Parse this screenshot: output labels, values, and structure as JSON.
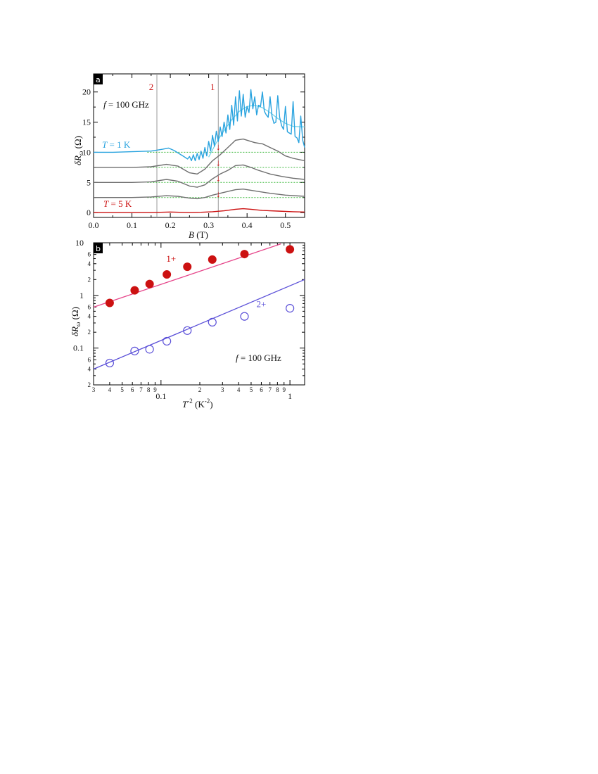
{
  "colors": {
    "cyan": "#29a3df",
    "cyan_light": "#6fd3e8",
    "gray": "#6e6e6e",
    "red": "#cc1111",
    "red_fit": "#e6458a",
    "blue": "#5a4fd8",
    "green": "#3cb83c",
    "marker_line": "#999999"
  },
  "chart_data": [
    {
      "panel": "a",
      "type": "line",
      "xlabel_italic": "B",
      "xlabel_rest": " (T)",
      "ylabel_prefix": "δ",
      "ylabel_main": "R",
      "ylabel_sub": "ω",
      "ylabel_unit": "  (Ω)",
      "xlim": [
        0,
        0.55
      ],
      "ylim": [
        -0.8,
        23
      ],
      "x_ticks": [
        0.0,
        0.1,
        0.2,
        0.3,
        0.4,
        0.5
      ],
      "x_tick_labels": [
        "0.0",
        "0.1",
        "0.2",
        "0.3",
        "0.4",
        "0.5"
      ],
      "y_ticks": [
        0,
        5,
        10,
        15,
        20
      ],
      "y_tick_labels": [
        "0",
        "5",
        "10",
        "15",
        "20"
      ],
      "vertical_lines": [
        {
          "x": 0.165,
          "label": "2"
        },
        {
          "x": 0.325,
          "label": "1"
        }
      ],
      "frequency_prefix": "f",
      "frequency_text": " = 100 GHz",
      "temp_high_prefix": "T",
      "temp_high_text": " = 1 K",
      "temp_low_prefix": "T",
      "temp_low_text": " = 5 K",
      "arrow_glyph": "↓",
      "arrows": [
        {
          "x": 0.325,
          "y": 10.4
        },
        {
          "x": 0.325,
          "y": 7.8
        },
        {
          "x": 0.325,
          "y": 5.2
        },
        {
          "x": 0.325,
          "y": 2.6
        }
      ],
      "baselines": [
        10,
        7.5,
        5,
        2.5
      ],
      "series": [
        {
          "color_key": "cyan_light",
          "width": 1.2,
          "x": [
            0.3,
            0.32,
            0.34,
            0.36,
            0.38,
            0.4,
            0.42,
            0.44,
            0.46,
            0.48,
            0.5,
            0.52,
            0.55
          ],
          "y": [
            9.2,
            11.6,
            13.6,
            15.4,
            16.8,
            17.6,
            17.8,
            17.4,
            16.6,
            15.6,
            14.8,
            14.3,
            14.2
          ]
        },
        {
          "color_key": "cyan",
          "width": 1.4,
          "x": [
            0.0,
            0.05,
            0.1,
            0.15,
            0.18,
            0.195,
            0.21,
            0.225,
            0.235,
            0.245,
            0.25,
            0.255,
            0.26,
            0.265,
            0.27,
            0.275,
            0.28,
            0.285,
            0.29,
            0.295,
            0.3,
            0.305,
            0.31,
            0.315,
            0.32,
            0.325,
            0.33,
            0.335,
            0.34,
            0.345,
            0.35,
            0.355,
            0.36,
            0.365,
            0.37,
            0.375,
            0.38,
            0.385,
            0.39,
            0.395,
            0.4,
            0.405,
            0.41,
            0.415,
            0.42,
            0.425,
            0.43,
            0.435,
            0.44,
            0.445,
            0.45,
            0.455,
            0.46,
            0.465,
            0.47,
            0.475,
            0.48,
            0.485,
            0.49,
            0.495,
            0.5,
            0.505,
            0.51,
            0.515,
            0.52,
            0.525,
            0.53,
            0.535,
            0.54,
            0.545,
            0.55
          ],
          "y": [
            10.0,
            10.0,
            10.1,
            10.2,
            10.5,
            10.7,
            10.3,
            9.7,
            9.3,
            8.9,
            9.3,
            8.6,
            9.6,
            8.6,
            9.8,
            8.8,
            10.2,
            9.0,
            10.8,
            9.4,
            11.8,
            10.2,
            12.8,
            11.0,
            13.5,
            11.8,
            14.2,
            12.6,
            15.0,
            13.2,
            16.2,
            13.8,
            17.8,
            14.5,
            19.2,
            15.2,
            20.2,
            16.0,
            19.6,
            15.8,
            17.6,
            16.6,
            20.4,
            17.2,
            19.2,
            16.2,
            17.8,
            17.6,
            20.0,
            16.8,
            16.2,
            15.8,
            19.2,
            16.0,
            14.8,
            15.0,
            19.4,
            15.8,
            14.4,
            13.8,
            17.6,
            13.4,
            13.2,
            13.0,
            18.4,
            12.6,
            12.4,
            11.6,
            16.0,
            12.0,
            10.8
          ]
        },
        {
          "color_key": "gray",
          "width": 1.4,
          "x": [
            0.0,
            0.1,
            0.15,
            0.19,
            0.22,
            0.25,
            0.27,
            0.29,
            0.31,
            0.33,
            0.35,
            0.37,
            0.39,
            0.4,
            0.42,
            0.44,
            0.46,
            0.48,
            0.5,
            0.52,
            0.55
          ],
          "y": [
            7.5,
            7.5,
            7.6,
            8.0,
            7.7,
            6.6,
            6.4,
            7.2,
            8.6,
            9.6,
            10.8,
            12.0,
            12.2,
            12.0,
            11.6,
            11.4,
            10.8,
            10.2,
            9.4,
            9.0,
            8.6
          ]
        },
        {
          "color_key": "gray",
          "width": 1.4,
          "x": [
            0.0,
            0.1,
            0.15,
            0.19,
            0.22,
            0.25,
            0.27,
            0.29,
            0.31,
            0.33,
            0.35,
            0.37,
            0.39,
            0.41,
            0.43,
            0.46,
            0.49,
            0.52,
            0.55
          ],
          "y": [
            5.0,
            5.0,
            5.1,
            5.5,
            5.2,
            4.4,
            4.2,
            4.6,
            5.6,
            6.4,
            7.0,
            7.8,
            7.9,
            7.5,
            7.0,
            6.4,
            6.0,
            5.7,
            5.5
          ]
        },
        {
          "color_key": "gray",
          "width": 1.4,
          "x": [
            0.0,
            0.1,
            0.15,
            0.19,
            0.22,
            0.25,
            0.27,
            0.29,
            0.31,
            0.33,
            0.35,
            0.37,
            0.39,
            0.42,
            0.46,
            0.5,
            0.55
          ],
          "y": [
            2.5,
            2.5,
            2.6,
            2.8,
            2.7,
            2.4,
            2.3,
            2.5,
            2.9,
            3.2,
            3.5,
            3.8,
            3.9,
            3.6,
            3.2,
            2.9,
            2.7
          ]
        },
        {
          "color_key": "red",
          "width": 1.4,
          "x": [
            0.0,
            0.1,
            0.15,
            0.2,
            0.25,
            0.28,
            0.31,
            0.34,
            0.37,
            0.39,
            0.41,
            0.44,
            0.48,
            0.52,
            0.55
          ],
          "y": [
            0.0,
            0.0,
            0.0,
            0.1,
            0.0,
            0.05,
            0.15,
            0.3,
            0.55,
            0.65,
            0.55,
            0.35,
            0.25,
            0.15,
            0.1
          ]
        }
      ]
    },
    {
      "panel": "b",
      "type": "scatter",
      "xscale": "log",
      "yscale": "log",
      "xlabel_italic": "T",
      "xlabel_sup": "-2",
      "xlabel_rest": " (K",
      "xlabel_sup2": "-2",
      "xlabel_close": ")",
      "ylabel_prefix": "δ",
      "ylabel_main": "R",
      "ylabel_sub": "ω",
      "ylabel_unit": "  (Ω)",
      "xlim": [
        0.03,
        1.3
      ],
      "ylim": [
        0.02,
        10
      ],
      "x_major_ticks": [
        0.1,
        1
      ],
      "x_major_labels": [
        "0.1",
        "1"
      ],
      "x_minor_ticks": [
        0.03,
        0.04,
        0.05,
        0.06,
        0.07,
        0.08,
        0.09,
        0.2,
        0.3,
        0.4,
        0.5,
        0.6,
        0.7,
        0.8,
        0.9
      ],
      "x_minor_labels": [
        "3",
        "4",
        "5",
        "6",
        "7",
        "8",
        "9",
        "2",
        "3",
        "4",
        "5",
        "6",
        "7",
        "8",
        "9"
      ],
      "y_major_ticks": [
        0.1,
        1,
        10
      ],
      "y_major_labels": [
        "0.1",
        "1",
        "10"
      ],
      "y_minor_ticks": [
        0.02,
        0.04,
        0.06,
        0.2,
        0.4,
        0.6,
        2,
        4,
        6
      ],
      "y_minor_labels": [
        "2",
        "4",
        "6",
        "2",
        "4",
        "6",
        "2",
        "4",
        "6"
      ],
      "frequency_prefix": "f",
      "frequency_text": " = 100 GHz",
      "series": [
        {
          "name": "1+",
          "color_key": "red",
          "filled": true,
          "x": [
            0.04,
            0.0625,
            0.0816,
            0.111,
            0.16,
            0.25,
            0.444,
            1.0
          ],
          "y": [
            0.72,
            1.25,
            1.65,
            2.5,
            3.5,
            4.8,
            6.1,
            7.5
          ],
          "fit": {
            "x": [
              0.03,
              0.85
            ],
            "y": [
              0.6,
              9.5
            ]
          }
        },
        {
          "name": "2+",
          "color_key": "blue",
          "filled": false,
          "x": [
            0.04,
            0.0625,
            0.0816,
            0.111,
            0.16,
            0.25,
            0.444,
            1.0
          ],
          "y": [
            0.052,
            0.088,
            0.095,
            0.135,
            0.215,
            0.31,
            0.4,
            0.57
          ],
          "fit": {
            "x": [
              0.03,
              1.3
            ],
            "y": [
              0.04,
              2.0
            ]
          }
        }
      ]
    }
  ]
}
